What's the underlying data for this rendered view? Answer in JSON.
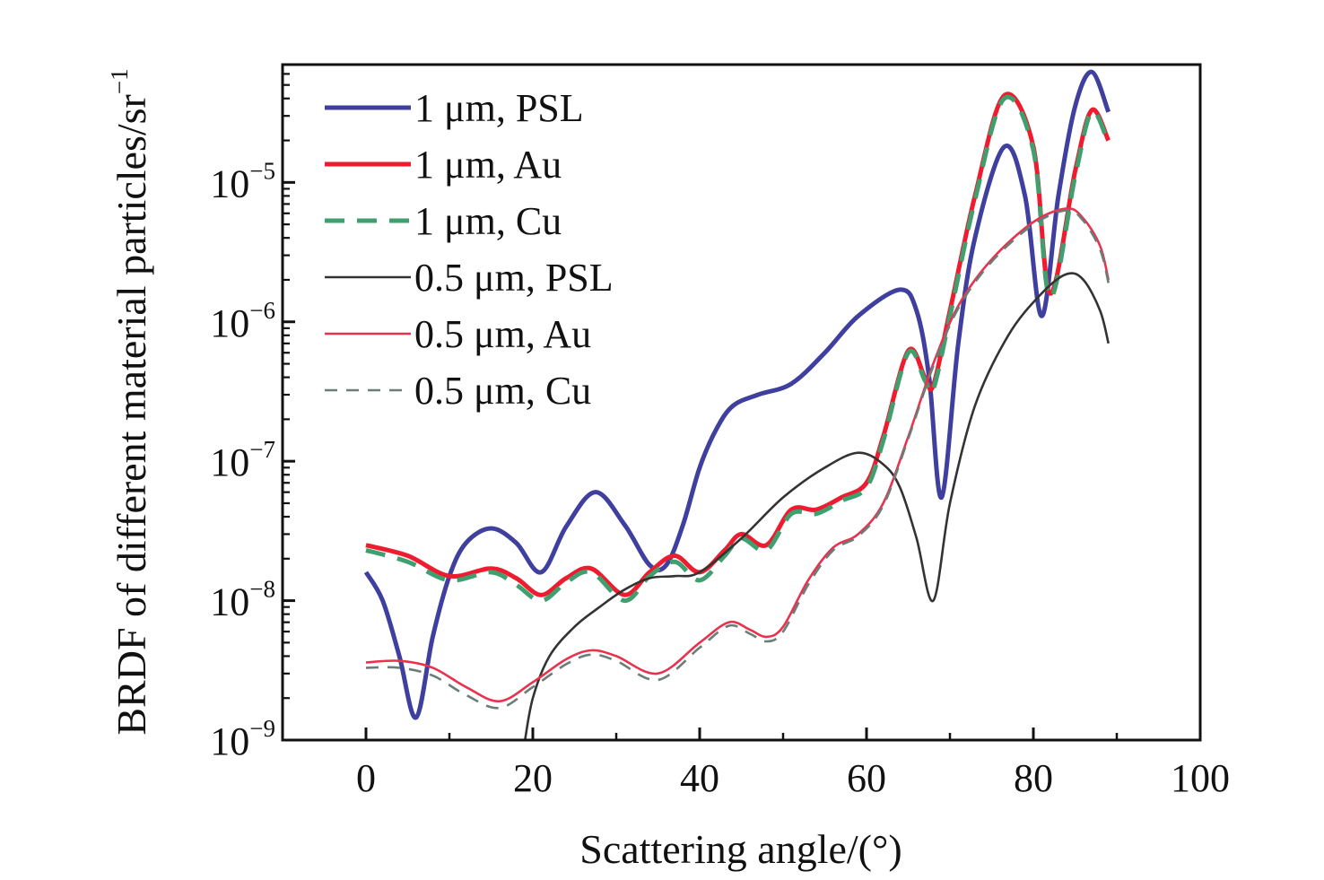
{
  "chart_data": {
    "type": "line",
    "title": "",
    "xlabel": "Scattering angle/(°)",
    "ylabel": "BRDF of different material particles/sr",
    "ylabel_exponent": "−1",
    "xlim": [
      -10,
      100
    ],
    "ylim": [
      1e-09,
      7e-05
    ],
    "yscale": "log",
    "xticks": [
      0,
      20,
      40,
      60,
      80,
      100
    ],
    "xtick_labels": [
      "0",
      "20",
      "40",
      "60",
      "80",
      "100"
    ],
    "yticks": [
      1e-09,
      1e-08,
      1e-07,
      1e-06,
      1e-05
    ],
    "ytick_labels": [
      {
        "base": "10",
        "exp": "−9"
      },
      {
        "base": "10",
        "exp": "−8"
      },
      {
        "base": "10",
        "exp": "−7"
      },
      {
        "base": "10",
        "exp": "−6"
      },
      {
        "base": "10",
        "exp": "−5"
      }
    ],
    "grid": false,
    "legend_position": "top-left",
    "series": [
      {
        "name": "1 μm, PSL",
        "color": "#3f3f9f",
        "dash": "solid",
        "width": "thick",
        "x": [
          0,
          2,
          4,
          6,
          8,
          10,
          12,
          15,
          18,
          21,
          24,
          27.5,
          31,
          34,
          36,
          38,
          40,
          42,
          44,
          47,
          51,
          55,
          59,
          64,
          66,
          67.5,
          69,
          71,
          73,
          76.5,
          79,
          81,
          83,
          85,
          87,
          89
        ],
        "y": [
          1.6e-08,
          1e-08,
          4e-09,
          1.45e-09,
          5.5e-09,
          1.5e-08,
          2.6e-08,
          3.3e-08,
          2.6e-08,
          1.6e-08,
          3.4e-08,
          6e-08,
          3.5e-08,
          1.8e-08,
          1.8e-08,
          3.5e-08,
          9e-08,
          1.7e-07,
          2.5e-07,
          3e-07,
          3.6e-07,
          6e-07,
          1.1e-06,
          1.7e-06,
          1.2e-06,
          4e-07,
          5.5e-08,
          7e-07,
          4e-06,
          1.8e-05,
          8e-06,
          1.1e-06,
          8e-06,
          3.5e-05,
          6.2e-05,
          3.2e-05
        ]
      },
      {
        "name": "1 μm, Au",
        "color": "#ee1c2e",
        "dash": "solid",
        "width": "thick",
        "x": [
          0,
          5,
          10,
          15,
          18,
          21,
          24,
          27,
          31,
          34,
          37,
          40,
          43,
          45,
          48,
          51,
          54,
          57,
          60,
          62,
          65,
          67,
          68,
          70,
          73,
          76.5,
          80,
          82,
          85,
          87,
          89
        ],
        "y": [
          2.5e-08,
          2.1e-08,
          1.5e-08,
          1.7e-08,
          1.45e-08,
          1.1e-08,
          1.45e-08,
          1.7e-08,
          1.1e-08,
          1.6e-08,
          2.1e-08,
          1.6e-08,
          2.3e-08,
          3e-08,
          2.5e-08,
          4.5e-08,
          4.5e-08,
          5.5e-08,
          7e-08,
          1.5e-07,
          6.2e-07,
          4e-07,
          3.5e-07,
          1.2e-06,
          8e-06,
          4.2e-05,
          1.8e-05,
          1.6e-06,
          1.2e-05,
          3.3e-05,
          2e-05
        ]
      },
      {
        "name": "1 μm, Cu",
        "color": "#3f9f6f",
        "dash": "dashed",
        "width": "thick",
        "x": [
          0,
          5,
          10,
          15,
          18,
          21,
          24,
          27,
          31,
          34,
          37,
          40,
          43,
          45,
          48,
          51,
          54,
          57,
          60,
          62,
          65,
          67,
          68,
          70,
          73,
          76.5,
          80,
          82,
          85,
          87,
          89
        ],
        "y": [
          2.3e-08,
          1.9e-08,
          1.4e-08,
          1.6e-08,
          1.3e-08,
          1e-08,
          1.35e-08,
          1.6e-08,
          1e-08,
          1.5e-08,
          1.9e-08,
          1.4e-08,
          2.1e-08,
          2.8e-08,
          2.3e-08,
          4.2e-08,
          4.2e-08,
          5.2e-08,
          6.5e-08,
          1.4e-07,
          6e-07,
          3.8e-07,
          3.3e-07,
          1.1e-06,
          7.5e-06,
          4e-05,
          1.7e-05,
          1.5e-06,
          1.1e-05,
          3.2e-05,
          1.9e-05
        ]
      },
      {
        "name": "0.5 μm, PSL",
        "color": "#333333",
        "dash": "solid",
        "width": "thin",
        "x": [
          19,
          20,
          22,
          25,
          28,
          31,
          34,
          37,
          40,
          45,
          50,
          55,
          59,
          62,
          64,
          66,
          68,
          70,
          73,
          77,
          81,
          84,
          86,
          88,
          89
        ],
        "y": [
          9.5e-10,
          2e-09,
          4e-09,
          6.5e-09,
          9e-09,
          1.2e-08,
          1.45e-08,
          1.5e-08,
          1.6e-08,
          2.8e-08,
          5.5e-08,
          9e-08,
          1.15e-07,
          9.5e-08,
          6.5e-08,
          2.8e-08,
          1e-08,
          5e-08,
          2.5e-07,
          8e-07,
          1.6e-06,
          2.2e-06,
          2e-06,
          1.2e-06,
          7e-07
        ]
      },
      {
        "name": "0.5 μm, Au",
        "color": "#e8324e",
        "dash": "solid",
        "width": "thin",
        "x": [
          0,
          4,
          8,
          12,
          16,
          20,
          24,
          27,
          30,
          35,
          40,
          43.5,
          46,
          48,
          50,
          53,
          56,
          59,
          62,
          65,
          68,
          71,
          75,
          80,
          84,
          86,
          88,
          89
        ],
        "y": [
          3.6e-09,
          3.7e-09,
          3.3e-09,
          2.4e-09,
          1.9e-09,
          2.6e-09,
          3.8e-09,
          4.4e-09,
          4e-09,
          3e-09,
          5e-09,
          7e-09,
          6.2e-09,
          5.5e-09,
          6.5e-09,
          1.4e-08,
          2.4e-08,
          3e-08,
          5e-08,
          1.5e-07,
          5e-07,
          1.3e-06,
          2.8e-06,
          5.2e-06,
          6.5e-06,
          5.5e-06,
          3.5e-06,
          2e-06
        ]
      },
      {
        "name": "0.5 μm, Cu",
        "color": "#6a7d77",
        "dash": "dashed",
        "width": "thin",
        "x": [
          0,
          4,
          8,
          12,
          16,
          20,
          24,
          27,
          30,
          35,
          40,
          43.5,
          46,
          48,
          50,
          53,
          56,
          59,
          62,
          65,
          68,
          71,
          75,
          80,
          84,
          86,
          88,
          89
        ],
        "y": [
          3.3e-09,
          3.3e-09,
          2.9e-09,
          2.1e-09,
          1.7e-09,
          2.4e-09,
          3.5e-09,
          4.1e-09,
          3.7e-09,
          2.7e-09,
          4.6e-09,
          6.6e-09,
          5.8e-09,
          5.1e-09,
          6e-09,
          1.3e-08,
          2.3e-08,
          2.9e-08,
          4.8e-08,
          1.45e-07,
          4.8e-07,
          1.25e-06,
          2.7e-06,
          5e-06,
          6.3e-06,
          5.3e-06,
          3.3e-06,
          1.9e-06
        ]
      }
    ]
  }
}
